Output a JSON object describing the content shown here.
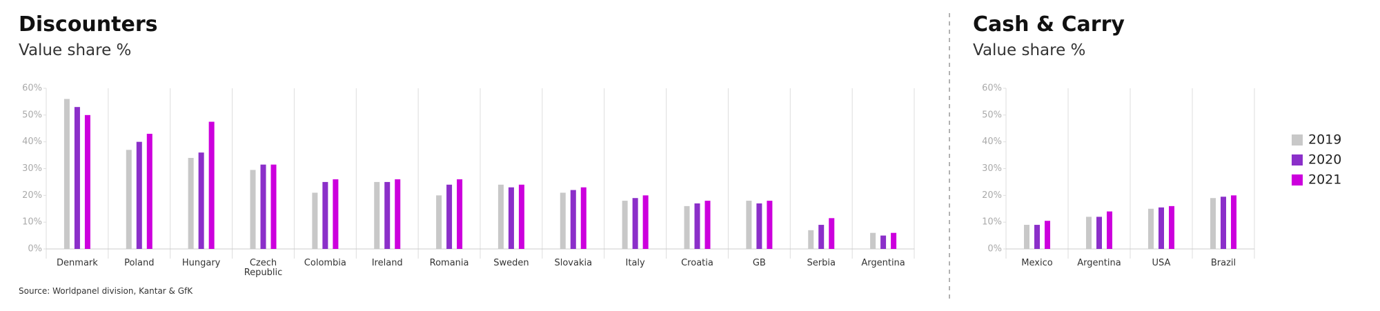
{
  "chart_data": [
    {
      "type": "bar",
      "title": "Discounters",
      "subtitle": "Value share %",
      "categories": [
        "Denmark",
        "Poland",
        "Hungary",
        "Czech Republic",
        "Colombia",
        "Ireland",
        "Romania",
        "Sweden",
        "Slovakia",
        "Italy",
        "Croatia",
        "GB",
        "Serbia",
        "Argentina"
      ],
      "series": [
        {
          "color": "#c8c8c8",
          "values": [
            56,
            37,
            34,
            29.5,
            21,
            25,
            20,
            24,
            21,
            18,
            16,
            18,
            7,
            6
          ]
        },
        {
          "color": "#8b2fc9",
          "values": [
            53,
            40,
            36,
            31.5,
            25,
            25,
            24,
            23,
            22,
            19,
            17,
            17,
            9,
            5
          ]
        },
        {
          "color": "#cc00dd",
          "values": [
            50,
            43,
            47.5,
            31.5,
            26,
            26,
            26,
            24,
            23,
            20,
            18,
            18,
            11.5,
            6
          ]
        }
      ],
      "ylim": [
        0,
        60
      ],
      "yticks": [
        {
          "value": 0,
          "label": "0%"
        },
        {
          "value": 10,
          "label": "10%"
        },
        {
          "value": 20,
          "label": "20%"
        },
        {
          "value": 30,
          "label": "30%"
        },
        {
          "value": 40,
          "label": "40%"
        },
        {
          "value": 50,
          "label": "50%"
        },
        {
          "value": 60,
          "label": "60%"
        }
      ],
      "source": "Source: Worldpanel division, Kantar & GfK"
    },
    {
      "type": "bar",
      "title": "Cash & Carry",
      "subtitle": "Value share %",
      "categories": [
        "Mexico",
        "Argentina",
        "USA",
        "Brazil"
      ],
      "series": [
        {
          "name": "2019",
          "color": "#c8c8c8",
          "values": [
            9,
            12,
            15,
            19
          ]
        },
        {
          "name": "2020",
          "color": "#8b2fc9",
          "values": [
            9,
            12,
            15.5,
            19.5
          ]
        },
        {
          "name": "2021",
          "color": "#cc00dd",
          "values": [
            10.5,
            14,
            16,
            20
          ]
        }
      ],
      "ylim": [
        0,
        60
      ],
      "yticks": [
        {
          "value": 0,
          "label": "0%"
        },
        {
          "value": 10,
          "label": "10%"
        },
        {
          "value": 20,
          "label": "20%"
        },
        {
          "value": 30,
          "label": "30%"
        },
        {
          "value": 40,
          "label": "40%"
        },
        {
          "value": 50,
          "label": "50%"
        },
        {
          "value": 60,
          "label": "60%"
        }
      ],
      "legend": "right"
    }
  ]
}
